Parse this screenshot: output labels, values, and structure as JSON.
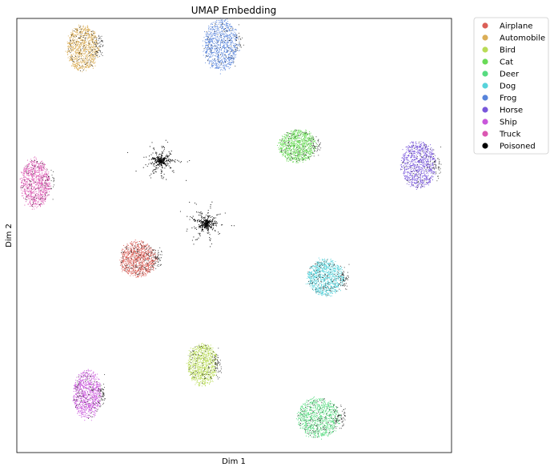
{
  "chart_data": {
    "type": "scatter",
    "title": "UMAP Embedding",
    "xlabel": "Dim 1",
    "ylabel": "Dim 2",
    "xticks": "none",
    "yticks": "none",
    "grid": false,
    "legend_position": "outside-right-top",
    "xlim": [
      0,
      100
    ],
    "ylim": [
      0,
      100
    ],
    "series": [
      {
        "name": "Airplane",
        "color": "#db5f57",
        "cx": 27.9,
        "cy": 44.6,
        "rx": 4.2,
        "ry": 4.0,
        "poison_frac": 0.22
      },
      {
        "name": "Automobile",
        "color": "#dbae57",
        "cx": 15.2,
        "cy": 93.1,
        "rx": 3.6,
        "ry": 5.2,
        "poison_frac": 0.18
      },
      {
        "name": "Bird",
        "color": "#b9db57",
        "cx": 42.7,
        "cy": 20.3,
        "rx": 3.4,
        "ry": 4.8,
        "poison_frac": 0.15
      },
      {
        "name": "Cat",
        "color": "#69db57",
        "cx": 64.5,
        "cy": 70.6,
        "rx": 4.2,
        "ry": 3.8,
        "poison_frac": 0.15
      },
      {
        "name": "Deer",
        "color": "#57db80",
        "cx": 69.4,
        "cy": 8.0,
        "rx": 4.8,
        "ry": 4.6,
        "poison_frac": 0.2
      },
      {
        "name": "Dog",
        "color": "#57d3db",
        "cx": 71.0,
        "cy": 40.3,
        "rx": 4.2,
        "ry": 4.2,
        "poison_frac": 0.2
      },
      {
        "name": "Frog",
        "color": "#5784db",
        "cx": 47.0,
        "cy": 93.9,
        "rx": 4.0,
        "ry": 5.8,
        "poison_frac": 0.1
      },
      {
        "name": "Horse",
        "color": "#7957db",
        "cx": 92.4,
        "cy": 66.3,
        "rx": 4.0,
        "ry": 5.3,
        "poison_frac": 0.12
      },
      {
        "name": "Ship",
        "color": "#c957db",
        "cx": 16.2,
        "cy": 13.3,
        "rx": 3.2,
        "ry": 5.5,
        "poison_frac": 0.15
      },
      {
        "name": "Truck",
        "color": "#db57b2",
        "cx": 4.3,
        "cy": 62.0,
        "rx": 3.4,
        "ry": 5.6,
        "poison_frac": 0.1
      },
      {
        "name": "Poisoned",
        "color": "#000000",
        "clusters": [
          {
            "cx": 33.1,
            "cy": 67.2,
            "r": 3.2
          },
          {
            "cx": 43.7,
            "cy": 52.7,
            "r": 3.0
          }
        ]
      }
    ]
  }
}
